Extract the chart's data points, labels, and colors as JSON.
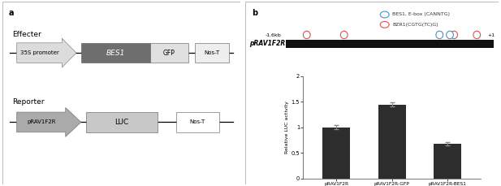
{
  "panel_a_label": "a",
  "panel_b_label": "b",
  "effecter_label": "Effecter",
  "reporter_label": "Reporter",
  "promoter_35S": "35S promoter",
  "bes1_label": "BES1",
  "gfp_label": "GFP",
  "nos_t_label": "Nos-T",
  "prav1f2r_label": "pRAV1F2R",
  "luc_label": "LUC",
  "promoter_region_label": "pRAV1F2R",
  "scale_left": "-1.6kb",
  "scale_right": "+1",
  "legend_bes1": "BES1, E-box (CANNTG)",
  "legend_bzr1": "BZR1(CGTG(TC)G)",
  "bar_categories": [
    "pRAV1F2R",
    "pRAV1F2R-GFP",
    "pRAV1F2R-BES1"
  ],
  "bar_values": [
    1.0,
    1.45,
    0.68
  ],
  "bar_errors": [
    0.04,
    0.04,
    0.03
  ],
  "bar_color": "#2d2d2d",
  "ylabel": "Relative LUC activity",
  "ylim": [
    0,
    2
  ],
  "yticks": [
    0,
    0.5,
    1.0,
    1.5,
    2
  ],
  "red_color": "#e05050",
  "blue_color": "#5090c0",
  "arrow_35s_facecolor": "#dcdcdc",
  "arrow_35s_edgecolor": "#888888",
  "arrow_prav_facecolor": "#aaaaaa",
  "arrow_prav_edgecolor": "#777777",
  "bes1_facecolor": "#6e6e6e",
  "gfp_facecolor": "#e0e0e0",
  "nos_facecolor": "#eeeeee",
  "luc_facecolor": "#c8c8c8",
  "nos2_facecolor": "#ffffff",
  "box_edgecolor": "#555555"
}
